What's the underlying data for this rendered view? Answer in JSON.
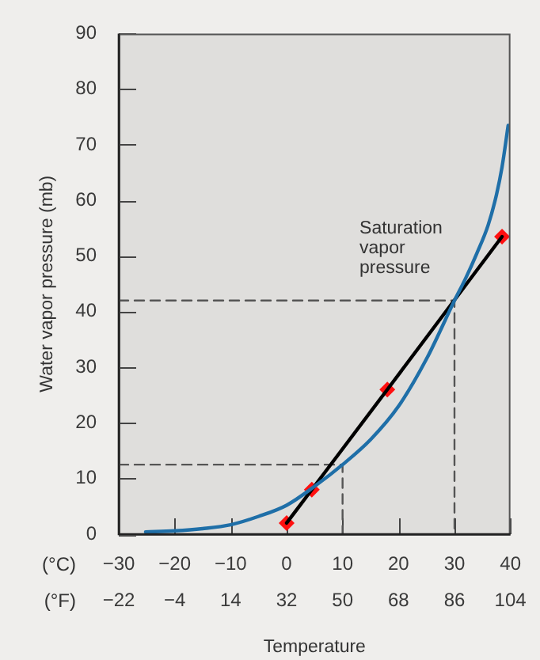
{
  "chart_data": {
    "type": "line",
    "xlabel": "Temperature",
    "ylabel": "Water vapor pressure (mb)",
    "annotations": [
      "(°C)",
      "(°F)"
    ],
    "xlim": [
      -30,
      40
    ],
    "xticks": [
      -30,
      -20,
      -10,
      0,
      10,
      20,
      30,
      40
    ],
    "x2lim": [
      -22,
      104
    ],
    "x2ticks": [
      -22,
      -4,
      14,
      32,
      50,
      68,
      86,
      104
    ],
    "ylim": [
      0,
      90
    ],
    "yticks": [
      0,
      10,
      20,
      30,
      40,
      50,
      60,
      70,
      80,
      90
    ],
    "series": [
      {
        "name": "Saturation vapor pressure",
        "color": "#1f6fa8",
        "marker": "none",
        "x": [
          -25.2,
          -20,
          -15,
          -10,
          -5,
          0,
          5,
          10,
          15,
          20,
          25,
          30,
          32,
          34,
          36,
          37.5,
          38.5,
          39.6
        ],
        "values": [
          0.4,
          0.6,
          1,
          1.7,
          3.2,
          5.2,
          8.6,
          12.5,
          17,
          23,
          31.5,
          42,
          46,
          50.5,
          55.5,
          61,
          66,
          73.5
        ]
      },
      {
        "color": "#000000",
        "marker": "none",
        "x": [
          0,
          4.5,
          18,
          38.5
        ],
        "values": [
          2,
          8,
          26,
          53.5
        ]
      },
      {
        "type": "scatter",
        "color": "#ff1010",
        "marker": "diamond",
        "x": [
          0,
          4.5,
          18,
          38.5
        ],
        "values": [
          2,
          8,
          26,
          53.5
        ]
      },
      {
        "color": "#555555",
        "marker": "none",
        "line_style": "dashed",
        "x": [
          -30,
          10,
          10
        ],
        "values": [
          12.5,
          12.5,
          0
        ]
      },
      {
        "color": "#555555",
        "marker": "none",
        "line_style": "dashed",
        "x": [
          -30,
          30,
          30
        ],
        "values": [
          42,
          42,
          0
        ]
      }
    ]
  }
}
